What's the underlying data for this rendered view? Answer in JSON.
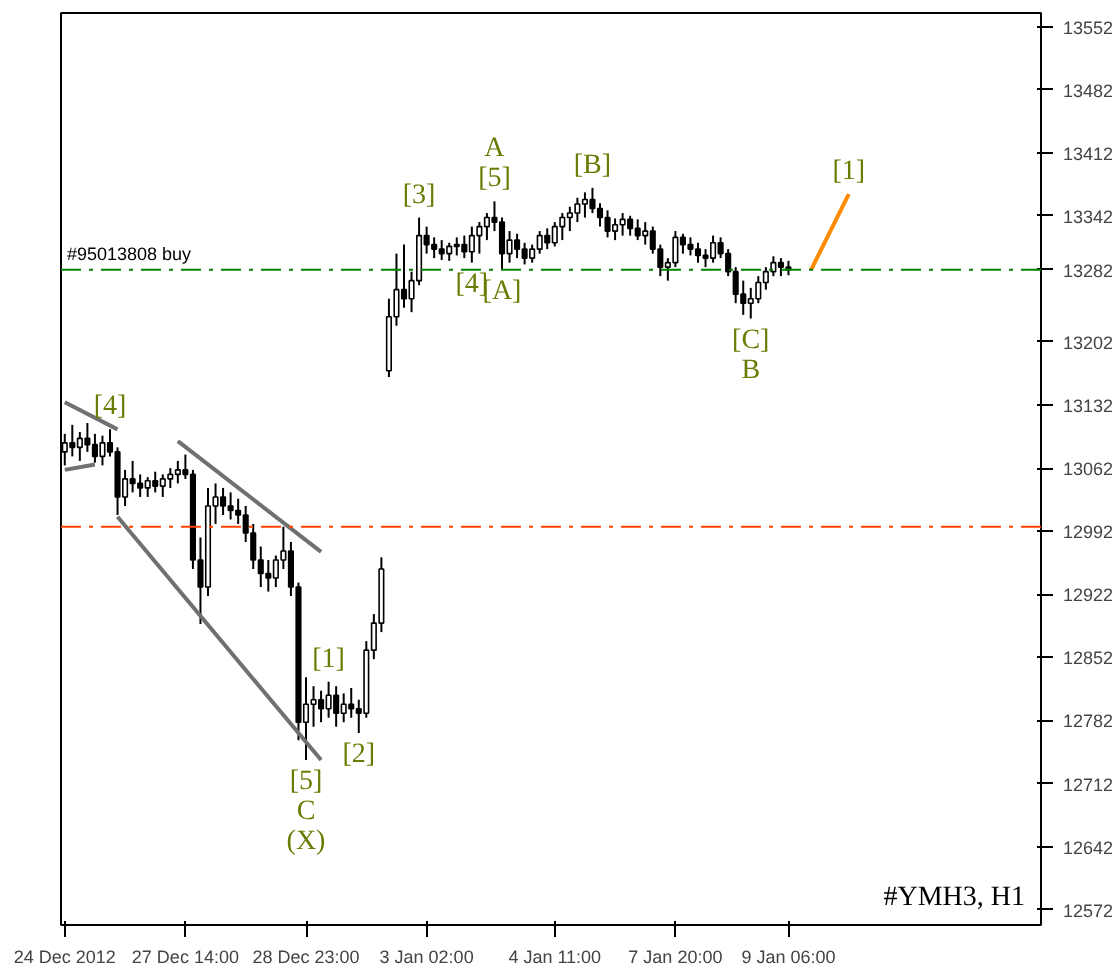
{
  "chart_data": {
    "type": "candlestick",
    "color": "#000000",
    "categories": [
      "24 Dec 2012",
      null,
      null,
      null,
      null,
      null,
      null,
      null,
      null,
      null,
      null,
      null,
      null,
      null,
      null,
      null,
      "27 Dec 14:00",
      null,
      null,
      null,
      null,
      null,
      null,
      null,
      null,
      null,
      null,
      null,
      null,
      null,
      null,
      null,
      "28 Dec 23:00",
      null,
      null,
      null,
      null,
      null,
      null,
      null,
      null,
      null,
      null,
      null,
      null,
      null,
      null,
      null,
      "3 Jan 02:00",
      null,
      null,
      null,
      null,
      null,
      null,
      null,
      null,
      null,
      null,
      null,
      null,
      null,
      null,
      null,
      null,
      "4 Jan 11:00",
      null,
      null,
      null,
      null,
      null,
      null,
      null,
      null,
      null,
      null,
      null,
      null,
      null,
      null,
      null,
      "7 Jan 20:00",
      null,
      null,
      null,
      null,
      null,
      null,
      null,
      null,
      null,
      null,
      null,
      null,
      null,
      null,
      "9 Jan 06:00",
      null,
      null,
      null,
      null,
      null,
      null,
      null,
      null,
      null,
      null,
      null,
      null,
      null,
      null,
      null,
      null,
      null,
      null,
      null,
      null,
      null,
      null,
      null,
      null,
      null,
      null,
      null,
      null,
      null,
      null,
      null,
      null,
      null
    ],
    "ohlc": [
      [
        13080,
        13100,
        13065,
        13090
      ],
      [
        13090,
        13110,
        13075,
        13085
      ],
      [
        13085,
        13102,
        13070,
        13095
      ],
      [
        13095,
        13112,
        13080,
        13088
      ],
      [
        13088,
        13100,
        13068,
        13075
      ],
      [
        13075,
        13098,
        13065,
        13090
      ],
      [
        13090,
        13105,
        13075,
        13080
      ],
      [
        13080,
        13085,
        13010,
        13030
      ],
      [
        13030,
        13060,
        13020,
        13050
      ],
      [
        13050,
        13070,
        13035,
        13045
      ],
      [
        13045,
        13055,
        13030,
        13040
      ],
      [
        13040,
        13052,
        13030,
        13048
      ],
      [
        13048,
        13058,
        13035,
        13042
      ],
      [
        13042,
        13055,
        13030,
        13050
      ],
      [
        13050,
        13062,
        13040,
        13055
      ],
      [
        13055,
        13070,
        13045,
        13060
      ],
      [
        13060,
        13077,
        13050,
        13055
      ],
      [
        13055,
        13060,
        12950,
        12960
      ],
      [
        12960,
        12985,
        12889,
        12930
      ],
      [
        12930,
        13040,
        12920,
        13020
      ],
      [
        13020,
        13045,
        13000,
        13030
      ],
      [
        13030,
        13040,
        13010,
        13020
      ],
      [
        13020,
        13035,
        13005,
        13015
      ],
      [
        13015,
        13028,
        13000,
        13010
      ],
      [
        13010,
        13020,
        12980,
        12990
      ],
      [
        12990,
        13000,
        12950,
        12960
      ],
      [
        12960,
        12975,
        12930,
        12945
      ],
      [
        12945,
        12960,
        12925,
        12940
      ],
      [
        12940,
        12965,
        12930,
        12960
      ],
      [
        12960,
        12997,
        12950,
        12970
      ],
      [
        12970,
        12980,
        12920,
        12930
      ],
      [
        12930,
        12935,
        12760,
        12780
      ],
      [
        12780,
        12830,
        12738,
        12800
      ],
      [
        12800,
        12820,
        12775,
        12805
      ],
      [
        12805,
        12815,
        12780,
        12795
      ],
      [
        12795,
        12825,
        12785,
        12810
      ],
      [
        12810,
        12820,
        12775,
        12790
      ],
      [
        12790,
        12812,
        12780,
        12800
      ],
      [
        12800,
        12818,
        12785,
        12795
      ],
      [
        12795,
        12805,
        12768,
        12790
      ],
      [
        12790,
        12870,
        12785,
        12860
      ],
      [
        12860,
        12900,
        12850,
        12890
      ],
      [
        12890,
        12963,
        12880,
        12950
      ],
      [
        13170,
        13250,
        13163,
        13230
      ],
      [
        13230,
        13300,
        13220,
        13260
      ],
      [
        13260,
        13310,
        13240,
        13250
      ],
      [
        13250,
        13280,
        13235,
        13270
      ],
      [
        13270,
        13340,
        13265,
        13320
      ],
      [
        13320,
        13330,
        13300,
        13310
      ],
      [
        13310,
        13318,
        13295,
        13305
      ],
      [
        13305,
        13315,
        13293,
        13300
      ],
      [
        13300,
        13312,
        13292,
        13308
      ],
      [
        13308,
        13318,
        13298,
        13310
      ],
      [
        13310,
        13320,
        13295,
        13302
      ],
      [
        13302,
        13330,
        13290,
        13320
      ],
      [
        13320,
        13335,
        13300,
        13330
      ],
      [
        13330,
        13345,
        13315,
        13340
      ],
      [
        13340,
        13358,
        13325,
        13335
      ],
      [
        13335,
        13340,
        13282,
        13300
      ],
      [
        13300,
        13325,
        13290,
        13315
      ],
      [
        13315,
        13322,
        13295,
        13305
      ],
      [
        13305,
        13312,
        13288,
        13295
      ],
      [
        13295,
        13310,
        13290,
        13305
      ],
      [
        13305,
        13325,
        13300,
        13320
      ],
      [
        13320,
        13328,
        13305,
        13312
      ],
      [
        13312,
        13335,
        13308,
        13330
      ],
      [
        13330,
        13345,
        13315,
        13340
      ],
      [
        13340,
        13352,
        13325,
        13345
      ],
      [
        13345,
        13362,
        13335,
        13355
      ],
      [
        13355,
        13368,
        13340,
        13360
      ],
      [
        13360,
        13373,
        13345,
        13350
      ],
      [
        13350,
        13356,
        13330,
        13340
      ],
      [
        13340,
        13348,
        13318,
        13325
      ],
      [
        13325,
        13339,
        13315,
        13332
      ],
      [
        13332,
        13345,
        13320,
        13338
      ],
      [
        13338,
        13342,
        13320,
        13328
      ],
      [
        13328,
        13338,
        13315,
        13320
      ],
      [
        13320,
        13335,
        13310,
        13325
      ],
      [
        13325,
        13330,
        13300,
        13305
      ],
      [
        13305,
        13310,
        13275,
        13285
      ],
      [
        13285,
        13295,
        13270,
        13290
      ],
      [
        13290,
        13325,
        13285,
        13318
      ],
      [
        13318,
        13322,
        13300,
        13310
      ],
      [
        13310,
        13318,
        13298,
        13305
      ],
      [
        13305,
        13312,
        13290,
        13298
      ],
      [
        13298,
        13305,
        13285,
        13295
      ],
      [
        13295,
        13320,
        13290,
        13312
      ],
      [
        13312,
        13318,
        13295,
        13300
      ],
      [
        13300,
        13305,
        13275,
        13280
      ],
      [
        13280,
        13285,
        13245,
        13255
      ],
      [
        13255,
        13270,
        13232,
        13245
      ],
      [
        13245,
        13262,
        13228,
        13250
      ],
      [
        13250,
        13275,
        13245,
        13268
      ],
      [
        13268,
        13285,
        13260,
        13280
      ],
      [
        13280,
        13297,
        13275,
        13290
      ],
      [
        13290,
        13295,
        13275,
        13285
      ],
      [
        13285,
        13292,
        13276,
        13282
      ],
      null,
      null,
      null,
      null,
      null,
      null,
      null,
      null,
      null,
      null,
      null,
      null,
      null,
      null,
      null,
      null,
      null,
      null,
      null,
      null,
      null,
      null,
      null,
      null,
      null,
      null,
      null,
      null,
      null,
      null,
      null,
      null,
      null
    ],
    "series": [
      {
        "type": "line",
        "color": "#707070",
        "values": [
          13135,
          null,
          null,
          null,
          null,
          null,
          null,
          13105,
          null,
          null,
          null,
          null,
          null,
          null,
          null,
          null,
          null,
          null,
          null,
          null,
          null,
          null,
          null,
          null,
          null,
          null,
          null,
          null,
          null,
          null,
          null,
          null,
          null,
          null,
          null,
          null,
          null,
          null,
          null,
          null,
          null,
          null,
          null,
          null,
          null,
          null,
          null,
          null,
          null,
          null,
          null,
          null,
          null,
          null,
          null,
          null,
          null,
          null,
          null,
          null,
          null,
          null,
          null,
          null,
          null,
          null,
          null,
          null,
          null,
          null,
          null,
          null,
          null,
          null,
          null,
          null,
          null,
          null,
          null,
          null,
          null,
          null,
          null,
          null,
          null,
          null,
          null,
          null,
          null,
          null,
          null,
          null,
          null,
          null,
          null,
          null,
          null,
          null,
          null,
          null,
          null,
          null,
          null,
          null,
          null,
          null,
          null,
          null,
          null,
          null,
          null,
          null,
          null,
          null,
          null,
          null,
          null,
          null,
          null,
          null,
          null,
          null,
          null,
          null,
          null,
          null,
          null,
          null,
          null,
          null
        ]
      },
      {
        "type": "line",
        "color": "#707070",
        "values": [
          13060,
          null,
          null,
          null,
          13066,
          null,
          null,
          null,
          null,
          null,
          null,
          null,
          null,
          null,
          null,
          null,
          null,
          null,
          null,
          null,
          null,
          null,
          null,
          null,
          null,
          null,
          null,
          null,
          null,
          null,
          null,
          null,
          null,
          null,
          null,
          null,
          null,
          null,
          null,
          null,
          null,
          null,
          null,
          null,
          null,
          null,
          null,
          null,
          null,
          null,
          null,
          null,
          null,
          null,
          null,
          null,
          null,
          null,
          null,
          null,
          null,
          null,
          null,
          null,
          null,
          null,
          null,
          null,
          null,
          null,
          null,
          null,
          null,
          null,
          null,
          null,
          null,
          null,
          null,
          null,
          null,
          null,
          null,
          null,
          null,
          null,
          null,
          null,
          null,
          null,
          null,
          null,
          null,
          null,
          null,
          null,
          null,
          null,
          null,
          null,
          null,
          null,
          null,
          null,
          null,
          null,
          null,
          null,
          null,
          null,
          null,
          null,
          null,
          null,
          null,
          null,
          null,
          null,
          null,
          null,
          null,
          null,
          null,
          null,
          null,
          null,
          null,
          null,
          null,
          null
        ]
      },
      {
        "type": "line",
        "color": "#707070",
        "values": [
          null,
          null,
          null,
          null,
          null,
          null,
          null,
          null,
          null,
          null,
          null,
          null,
          null,
          null,
          null,
          13092,
          null,
          null,
          null,
          null,
          null,
          null,
          null,
          null,
          null,
          null,
          null,
          null,
          null,
          null,
          null,
          null,
          null,
          null,
          12969,
          null,
          null,
          null,
          null,
          null,
          null,
          null,
          null,
          null,
          null,
          null,
          null,
          null,
          null,
          null,
          null,
          null,
          null,
          null,
          null,
          null,
          null,
          null,
          null,
          null,
          null,
          null,
          null,
          null,
          null,
          null,
          null,
          null,
          null,
          null,
          null,
          null,
          null,
          null,
          null,
          null,
          null,
          null,
          null,
          null,
          null,
          null,
          null,
          null,
          null,
          null,
          null,
          null,
          null,
          null,
          null,
          null,
          null,
          null,
          null,
          null,
          null,
          null,
          null,
          null,
          null,
          null,
          null,
          null,
          null,
          null,
          null,
          null,
          null,
          null,
          null,
          null,
          null,
          null,
          null,
          null,
          null,
          null,
          null,
          null,
          null,
          null,
          null,
          null,
          null,
          null,
          null,
          null,
          null,
          null
        ]
      },
      {
        "type": "line",
        "color": "#707070",
        "values": [
          null,
          null,
          null,
          null,
          null,
          null,
          null,
          13008,
          null,
          null,
          null,
          null,
          null,
          null,
          null,
          null,
          null,
          null,
          null,
          null,
          null,
          null,
          null,
          null,
          null,
          null,
          null,
          null,
          null,
          null,
          null,
          null,
          null,
          null,
          12738,
          null,
          null,
          null,
          null,
          null,
          null,
          null,
          null,
          null,
          null,
          null,
          null,
          null,
          null,
          null,
          null,
          null,
          null,
          null,
          null,
          null,
          null,
          null,
          null,
          null,
          null,
          null,
          null,
          null,
          null,
          null,
          null,
          null,
          null,
          null,
          null,
          null,
          null,
          null,
          null,
          null,
          null,
          null,
          null,
          null,
          null,
          null,
          null,
          null,
          null,
          null,
          null,
          null,
          null,
          null,
          null,
          null,
          null,
          null,
          null,
          null,
          null,
          null,
          null,
          null,
          null,
          null,
          null,
          null,
          null,
          null,
          null,
          null,
          null,
          null,
          null,
          null,
          null,
          null,
          null,
          null,
          null,
          null,
          null,
          null,
          null,
          null,
          null,
          null,
          null,
          null,
          null,
          null,
          null,
          null
        ]
      },
      {
        "type": "line",
        "color": "#ff8c00",
        "values": [
          null,
          null,
          null,
          null,
          null,
          null,
          null,
          null,
          null,
          null,
          null,
          null,
          null,
          null,
          null,
          null,
          null,
          null,
          null,
          null,
          null,
          null,
          null,
          null,
          null,
          null,
          null,
          null,
          null,
          null,
          null,
          null,
          null,
          null,
          null,
          null,
          null,
          null,
          null,
          null,
          null,
          null,
          null,
          null,
          null,
          null,
          null,
          null,
          null,
          null,
          null,
          null,
          null,
          null,
          null,
          null,
          null,
          null,
          null,
          null,
          null,
          null,
          null,
          null,
          null,
          null,
          null,
          null,
          null,
          null,
          null,
          null,
          null,
          null,
          null,
          null,
          null,
          null,
          null,
          null,
          null,
          null,
          null,
          null,
          null,
          null,
          null,
          null,
          null,
          null,
          null,
          null,
          null,
          null,
          null,
          null,
          null,
          null,
          null,
          13282,
          null,
          null,
          null,
          null,
          13366,
          null,
          null,
          null,
          null,
          null,
          null,
          null,
          null,
          null,
          null,
          null,
          null,
          null,
          null,
          null,
          null,
          null,
          null,
          null,
          null,
          null,
          null,
          null,
          null,
          null
        ]
      }
    ],
    "ylim": [
      12555,
      13567
    ],
    "yticks": [
      12572,
      12642,
      12712,
      12782,
      12852,
      12922,
      12992,
      13062,
      13132,
      13202,
      13282,
      13342,
      13412,
      13482,
      13552
    ],
    "ref_lines": [
      {
        "axis": "y",
        "value": 13282,
        "label": "#95013808 buy",
        "color": "#008000",
        "line_style": "dashed"
      },
      {
        "axis": "y",
        "value": 12997,
        "label": null,
        "color": "#ff4500",
        "line_style": "dashed"
      }
    ],
    "annotations": [
      {
        "text": "[4]",
        "y": 13105
      },
      {
        "text": "[5]",
        "y": 12738
      },
      {
        "text": "C",
        "y": 12738
      },
      {
        "text": "(X)",
        "y": 12738
      },
      {
        "text": "[1]",
        "y": 12825
      },
      {
        "text": "[2]",
        "y": 12768
      },
      {
        "text": "[3]",
        "y": 13340
      },
      {
        "text": "[5]",
        "y": 13358
      },
      {
        "text": "A",
        "y": 13358
      },
      {
        "text": "[4]",
        "y": 13290
      },
      {
        "text": "[A]",
        "y": 13282
      },
      {
        "text": "[B]",
        "y": 13373
      },
      {
        "text": "[C]",
        "y": 13228
      },
      {
        "text": "B",
        "y": 13228
      },
      {
        "text": "[1]",
        "y": 13366
      },
      "#YMH3, H1"
    ],
    "grid": false
  }
}
